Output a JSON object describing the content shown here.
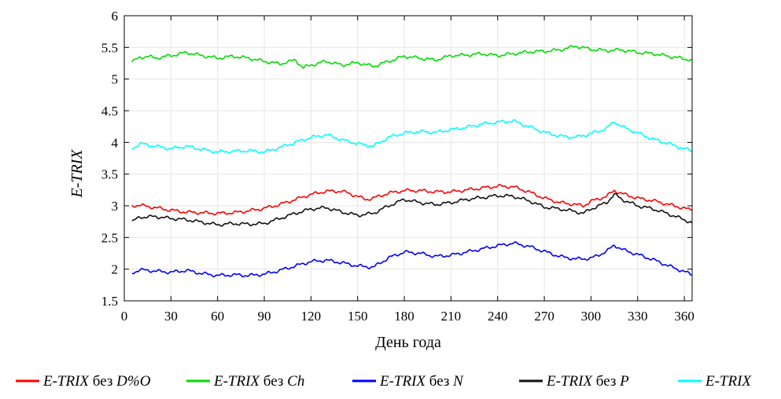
{
  "chart_data": {
    "type": "line",
    "xlabel": "День года",
    "ylabel": "E-TRIX",
    "xlim": [
      0,
      365
    ],
    "ylim": [
      1.5,
      6
    ],
    "xticks": [
      0,
      30,
      60,
      90,
      120,
      150,
      180,
      210,
      240,
      270,
      300,
      330,
      360
    ],
    "yticks": [
      1.5,
      2,
      2.5,
      3,
      3.5,
      4,
      4.5,
      5,
      5.5,
      6
    ],
    "ytick_labels": [
      "1.5",
      "2",
      "2.5",
      "3",
      "3.5",
      "4",
      "4.5",
      "5",
      "5.5",
      "6"
    ],
    "grid": true,
    "legend_position": "bottom",
    "series": [
      {
        "name": "E-TRIX без D%O",
        "name_italic": "E-TRIX",
        "name_plain": " без ",
        "name_suffix": "D%O",
        "color": "#ff0000",
        "x": [
          5,
          10,
          20,
          30,
          40,
          50,
          60,
          70,
          80,
          90,
          100,
          110,
          120,
          130,
          140,
          150,
          155,
          160,
          170,
          180,
          190,
          200,
          210,
          220,
          230,
          240,
          250,
          260,
          270,
          280,
          290,
          295,
          300,
          310,
          315,
          320,
          330,
          340,
          350,
          360,
          365
        ],
        "y": [
          3.0,
          3.01,
          2.97,
          2.93,
          2.9,
          2.89,
          2.88,
          2.89,
          2.92,
          2.96,
          3.02,
          3.1,
          3.18,
          3.23,
          3.23,
          3.15,
          3.1,
          3.12,
          3.2,
          3.24,
          3.24,
          3.22,
          3.22,
          3.25,
          3.28,
          3.31,
          3.3,
          3.22,
          3.12,
          3.05,
          3.02,
          3.0,
          3.07,
          3.15,
          3.24,
          3.19,
          3.12,
          3.08,
          3.02,
          2.96,
          2.93
        ]
      },
      {
        "name": "E-TRIX без Ch",
        "name_italic": "E-TRIX",
        "name_plain": " без ",
        "name_suffix": "Ch",
        "color": "#00dd00",
        "x": [
          5,
          10,
          15,
          20,
          30,
          40,
          50,
          60,
          70,
          80,
          90,
          100,
          110,
          115,
          120,
          130,
          140,
          150,
          160,
          170,
          180,
          190,
          200,
          210,
          220,
          230,
          240,
          250,
          260,
          270,
          280,
          290,
          300,
          310,
          320,
          330,
          340,
          350,
          360,
          365
        ],
        "y": [
          5.27,
          5.34,
          5.36,
          5.33,
          5.37,
          5.42,
          5.37,
          5.33,
          5.36,
          5.33,
          5.28,
          5.24,
          5.3,
          5.18,
          5.22,
          5.28,
          5.22,
          5.26,
          5.2,
          5.28,
          5.36,
          5.33,
          5.3,
          5.37,
          5.38,
          5.4,
          5.37,
          5.4,
          5.43,
          5.44,
          5.46,
          5.52,
          5.47,
          5.45,
          5.46,
          5.42,
          5.4,
          5.36,
          5.32,
          5.3
        ]
      },
      {
        "name": "E-TRIX без N",
        "name_italic": "E-TRIX",
        "name_plain": " без ",
        "name_suffix": "N",
        "color": "#0000ff",
        "x": [
          5,
          10,
          20,
          30,
          40,
          50,
          60,
          70,
          80,
          90,
          100,
          110,
          120,
          130,
          140,
          150,
          160,
          170,
          180,
          190,
          200,
          210,
          220,
          230,
          240,
          250,
          260,
          270,
          280,
          290,
          300,
          310,
          315,
          320,
          330,
          340,
          350,
          360,
          365
        ],
        "y": [
          1.94,
          1.99,
          1.97,
          1.95,
          1.98,
          1.93,
          1.9,
          1.91,
          1.9,
          1.92,
          1.98,
          2.05,
          2.12,
          2.14,
          2.1,
          2.05,
          2.03,
          2.18,
          2.27,
          2.25,
          2.2,
          2.22,
          2.27,
          2.32,
          2.37,
          2.41,
          2.36,
          2.28,
          2.2,
          2.16,
          2.17,
          2.28,
          2.38,
          2.31,
          2.23,
          2.15,
          2.05,
          1.96,
          1.91
        ]
      },
      {
        "name": "E-TRIX без P",
        "name_italic": "E-TRIX",
        "name_plain": " без ",
        "name_suffix": "P",
        "color": "#111111",
        "x": [
          5,
          10,
          20,
          30,
          40,
          50,
          60,
          70,
          80,
          90,
          100,
          110,
          120,
          130,
          140,
          150,
          160,
          170,
          180,
          190,
          200,
          210,
          220,
          230,
          240,
          250,
          260,
          270,
          280,
          290,
          295,
          300,
          310,
          315,
          320,
          330,
          340,
          350,
          360,
          365
        ],
        "y": [
          2.75,
          2.82,
          2.83,
          2.8,
          2.78,
          2.74,
          2.7,
          2.72,
          2.71,
          2.72,
          2.8,
          2.88,
          2.95,
          2.97,
          2.9,
          2.85,
          2.88,
          3.0,
          3.1,
          3.05,
          3.02,
          3.05,
          3.1,
          3.13,
          3.16,
          3.15,
          3.08,
          2.98,
          2.95,
          2.91,
          2.88,
          2.95,
          3.05,
          3.18,
          3.1,
          3.0,
          2.95,
          2.87,
          2.78,
          2.73
        ]
      },
      {
        "name": "E-TRIX",
        "name_italic": "E-TRIX",
        "name_plain": "",
        "name_suffix": "",
        "color": "#00ffff",
        "x": [
          5,
          10,
          20,
          30,
          40,
          50,
          60,
          70,
          80,
          90,
          100,
          110,
          120,
          130,
          140,
          150,
          160,
          170,
          180,
          190,
          200,
          210,
          220,
          230,
          240,
          250,
          260,
          270,
          280,
          290,
          300,
          310,
          315,
          320,
          330,
          340,
          350,
          360,
          365
        ],
        "y": [
          3.9,
          3.98,
          3.94,
          3.9,
          3.94,
          3.89,
          3.85,
          3.86,
          3.87,
          3.85,
          3.92,
          4.0,
          4.08,
          4.12,
          4.04,
          3.98,
          3.94,
          4.08,
          4.15,
          4.17,
          4.16,
          4.2,
          4.24,
          4.29,
          4.32,
          4.34,
          4.25,
          4.16,
          4.1,
          4.08,
          4.14,
          4.22,
          4.33,
          4.25,
          4.15,
          4.05,
          3.98,
          3.9,
          3.87
        ]
      }
    ]
  }
}
